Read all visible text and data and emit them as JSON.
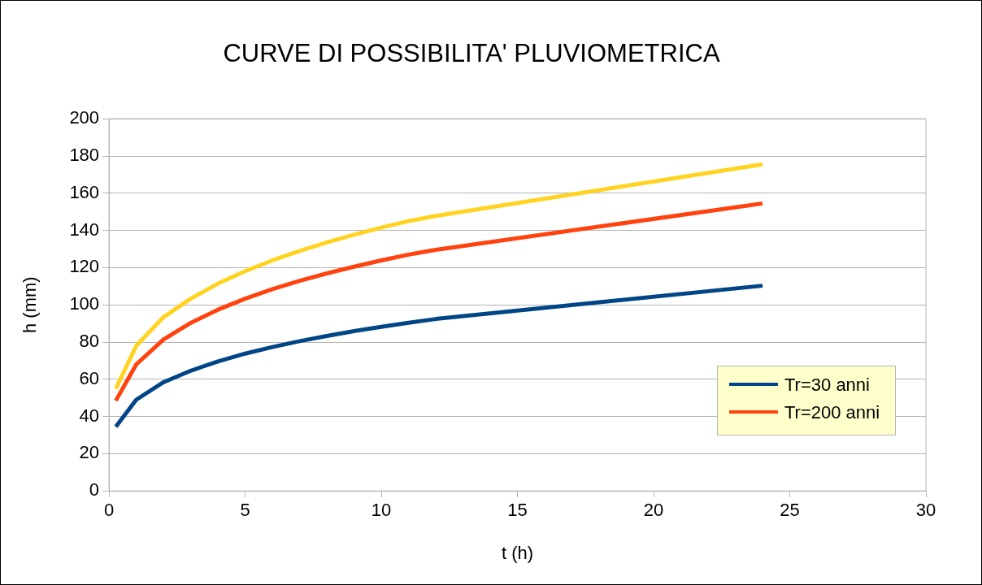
{
  "chart_data": {
    "type": "line",
    "title": "CURVE DI POSSIBILITA' PLUVIOMETRICA",
    "xlabel": "t (h)",
    "ylabel": "h (mm)",
    "x": [
      0.25,
      1,
      2,
      3,
      4,
      5,
      6,
      7,
      8,
      9,
      10,
      11,
      12,
      24
    ],
    "series": [
      {
        "name": "Tr=30 anni",
        "color": "#004586",
        "values": [
          34.5,
          49,
          58.4,
          64.6,
          69.6,
          73.8,
          77.3,
          80.5,
          83.3,
          85.9,
          88.2,
          90.4,
          92.4,
          110.3
        ]
      },
      {
        "name": "Tr=200 anni",
        "color": "#ff420e",
        "values": [
          48.5,
          68,
          81.4,
          90.3,
          97.4,
          103.3,
          108.4,
          112.9,
          116.9,
          120.5,
          123.9,
          127,
          129.6,
          154.5
        ]
      },
      {
        "color": "#ffd320",
        "values": [
          55,
          78,
          93.4,
          103.3,
          111.4,
          118.1,
          123.9,
          129,
          133.5,
          137.7,
          141.5,
          145,
          147.8,
          175.5
        ]
      }
    ],
    "xlim": [
      0,
      30
    ],
    "xticks": [
      0,
      5,
      10,
      15,
      20,
      25,
      30
    ],
    "ylim": [
      0,
      200
    ],
    "yticks": [
      0,
      20,
      40,
      60,
      80,
      100,
      120,
      140,
      160,
      180,
      200
    ],
    "grid": "y",
    "legend": "bottom right",
    "marker": "none",
    "line_style": "solid"
  }
}
